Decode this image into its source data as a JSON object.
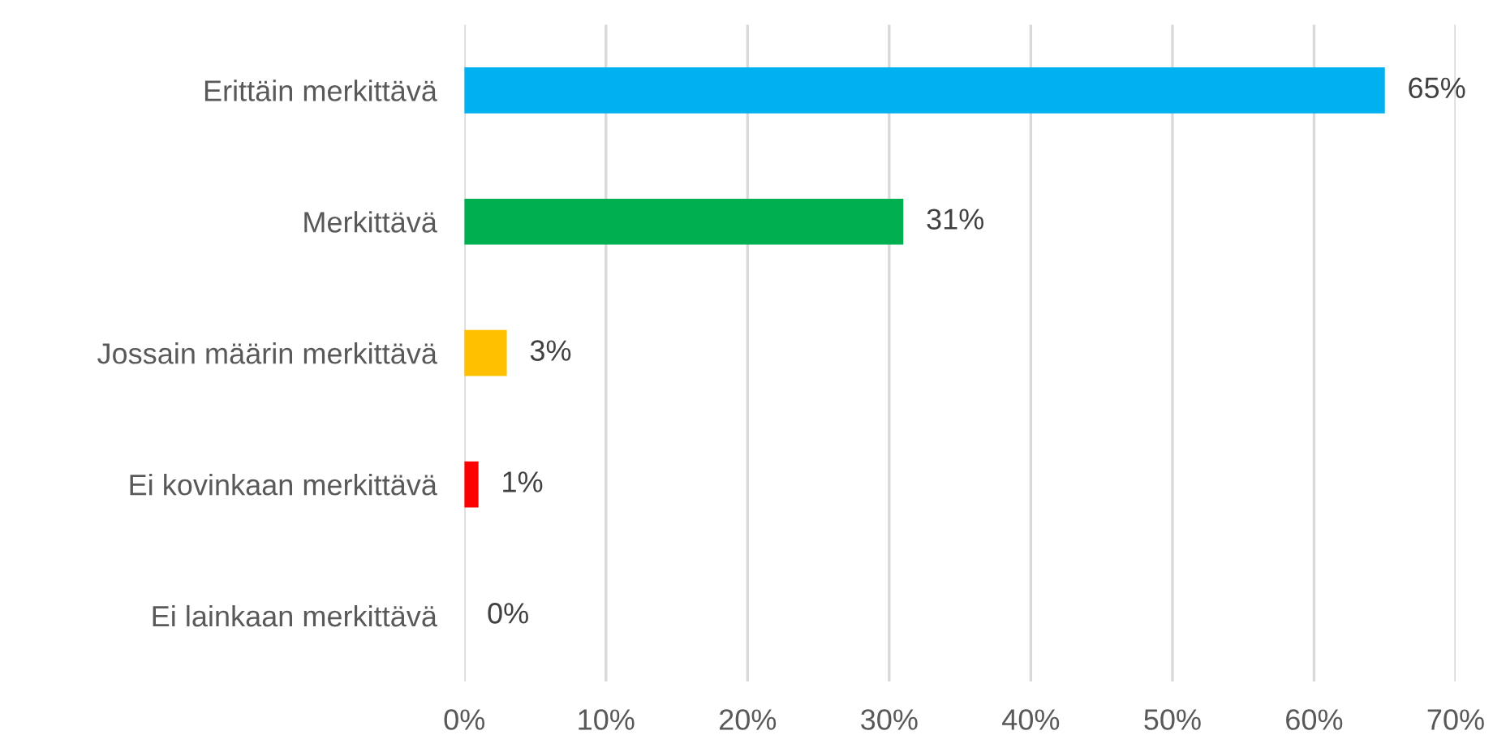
{
  "chart_data": {
    "type": "bar",
    "orientation": "horizontal",
    "categories": [
      "Erittäin merkittävä",
      "Merkittävä",
      "Jossain määrin merkittävä",
      "Ei kovinkaan merkittävä",
      "Ei lainkaan merkittävä"
    ],
    "values": [
      65,
      31,
      3,
      1,
      0
    ],
    "colors": [
      "#00b0f0",
      "#00b050",
      "#ffc000",
      "#ff0000",
      "#a5a5a5"
    ],
    "value_labels": [
      "65%",
      "31%",
      "3%",
      "1%",
      "0%"
    ],
    "xlim": [
      0,
      70
    ],
    "xticks": [
      {
        "value": 0,
        "label": "0%"
      },
      {
        "value": 10,
        "label": "10%"
      },
      {
        "value": 20,
        "label": "20%"
      },
      {
        "value": 30,
        "label": "30%"
      },
      {
        "value": 40,
        "label": "40%"
      },
      {
        "value": 50,
        "label": "50%"
      },
      {
        "value": 60,
        "label": "60%"
      },
      {
        "value": 70,
        "label": "70%"
      }
    ],
    "grid": "x",
    "legend": false
  }
}
